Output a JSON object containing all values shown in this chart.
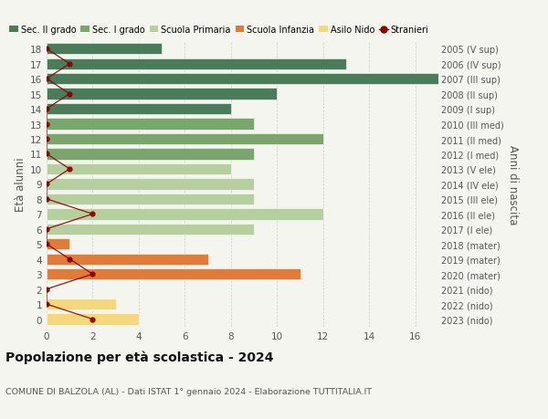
{
  "ages": [
    18,
    17,
    16,
    15,
    14,
    13,
    12,
    11,
    10,
    9,
    8,
    7,
    6,
    5,
    4,
    3,
    2,
    1,
    0
  ],
  "right_labels": [
    "2005 (V sup)",
    "2006 (IV sup)",
    "2007 (III sup)",
    "2008 (II sup)",
    "2009 (I sup)",
    "2010 (III med)",
    "2011 (II med)",
    "2012 (I med)",
    "2013 (V ele)",
    "2014 (IV ele)",
    "2015 (III ele)",
    "2016 (II ele)",
    "2017 (I ele)",
    "2018 (mater)",
    "2019 (mater)",
    "2020 (mater)",
    "2021 (nido)",
    "2022 (nido)",
    "2023 (nido)"
  ],
  "bar_values": [
    5,
    13,
    17,
    10,
    8,
    9,
    12,
    9,
    8,
    9,
    9,
    12,
    9,
    1,
    7,
    11,
    0,
    3,
    4
  ],
  "bar_colors": [
    "#4a7c59",
    "#4a7c59",
    "#4a7c59",
    "#4a7c59",
    "#4a7c59",
    "#7aa66d",
    "#7aa66d",
    "#7aa66d",
    "#b5cf9e",
    "#b5cf9e",
    "#b5cf9e",
    "#b5cf9e",
    "#b5cf9e",
    "#e07b39",
    "#e07b39",
    "#e07b39",
    "#f5d87e",
    "#f5d87e",
    "#f5d87e"
  ],
  "stranieri_values": [
    0,
    1,
    0,
    1,
    0,
    0,
    0,
    0,
    1,
    0,
    0,
    2,
    0,
    0,
    1,
    2,
    0,
    0,
    2
  ],
  "stranieri_color": "#8b0000",
  "title": "Popolazione per età scolastica - 2024",
  "subtitle": "COMUNE DI BALZOLA (AL) - Dati ISTAT 1° gennaio 2024 - Elaborazione TUTTITALIA.IT",
  "ylabel_left": "Età alunni",
  "ylabel_right": "Anni di nascita",
  "xlim": [
    0,
    17
  ],
  "xticks": [
    0,
    2,
    4,
    6,
    8,
    10,
    12,
    14,
    16
  ],
  "legend_labels": [
    "Sec. II grado",
    "Sec. I grado",
    "Scuola Primaria",
    "Scuola Infanzia",
    "Asilo Nido",
    "Stranieri"
  ],
  "legend_colors": [
    "#4a7c59",
    "#7aa66d",
    "#b5cf9e",
    "#e07b39",
    "#f5d87e",
    "#8b0000"
  ],
  "background_color": "#f5f5f0",
  "grid_color": "#cccccc",
  "bar_height": 0.75
}
